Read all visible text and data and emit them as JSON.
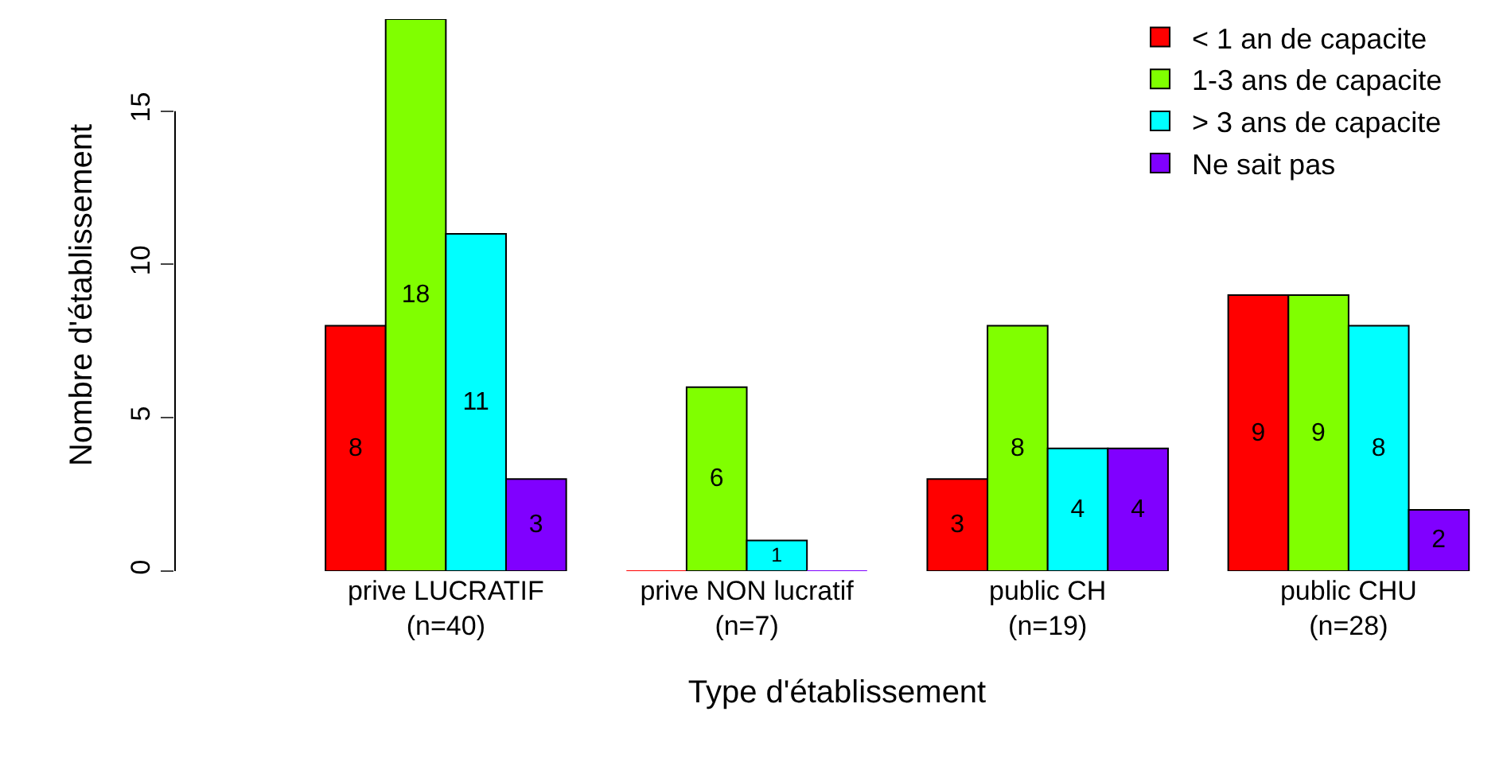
{
  "chart_data": {
    "type": "bar",
    "xlabel": "Type d'établissement",
    "ylabel": "Nombre d'établissement",
    "categories": [
      "prive LUCRATIF\n(n=40)",
      "prive NON lucratif\n(n=7)",
      "public CH\n(n=19)",
      "public CHU\n(n=28)"
    ],
    "series": [
      {
        "name": "< 1 an de capacite",
        "color": "#ff0000",
        "values": [
          8,
          0,
          3,
          9
        ],
        "value_labels": [
          "8",
          null,
          "3",
          "9"
        ]
      },
      {
        "name": "1-3 ans de capacite",
        "color": "#80ff00",
        "values": [
          18,
          6,
          8,
          9
        ],
        "value_labels": [
          "18",
          "6",
          "8",
          "9"
        ]
      },
      {
        "name": "> 3 ans de capacite",
        "color": "#00ffff",
        "values": [
          11,
          1,
          4,
          8
        ],
        "value_labels": [
          "11",
          "1",
          "4",
          "8"
        ]
      },
      {
        "name": "Ne sait pas",
        "color": "#8000ff",
        "values": [
          3,
          0,
          4,
          2
        ],
        "value_labels": [
          "3",
          null,
          "4",
          "2"
        ]
      }
    ],
    "ylim": [
      0,
      18
    ],
    "yticks": [
      0,
      5,
      10,
      15
    ],
    "grid": false,
    "legend": "top right"
  }
}
